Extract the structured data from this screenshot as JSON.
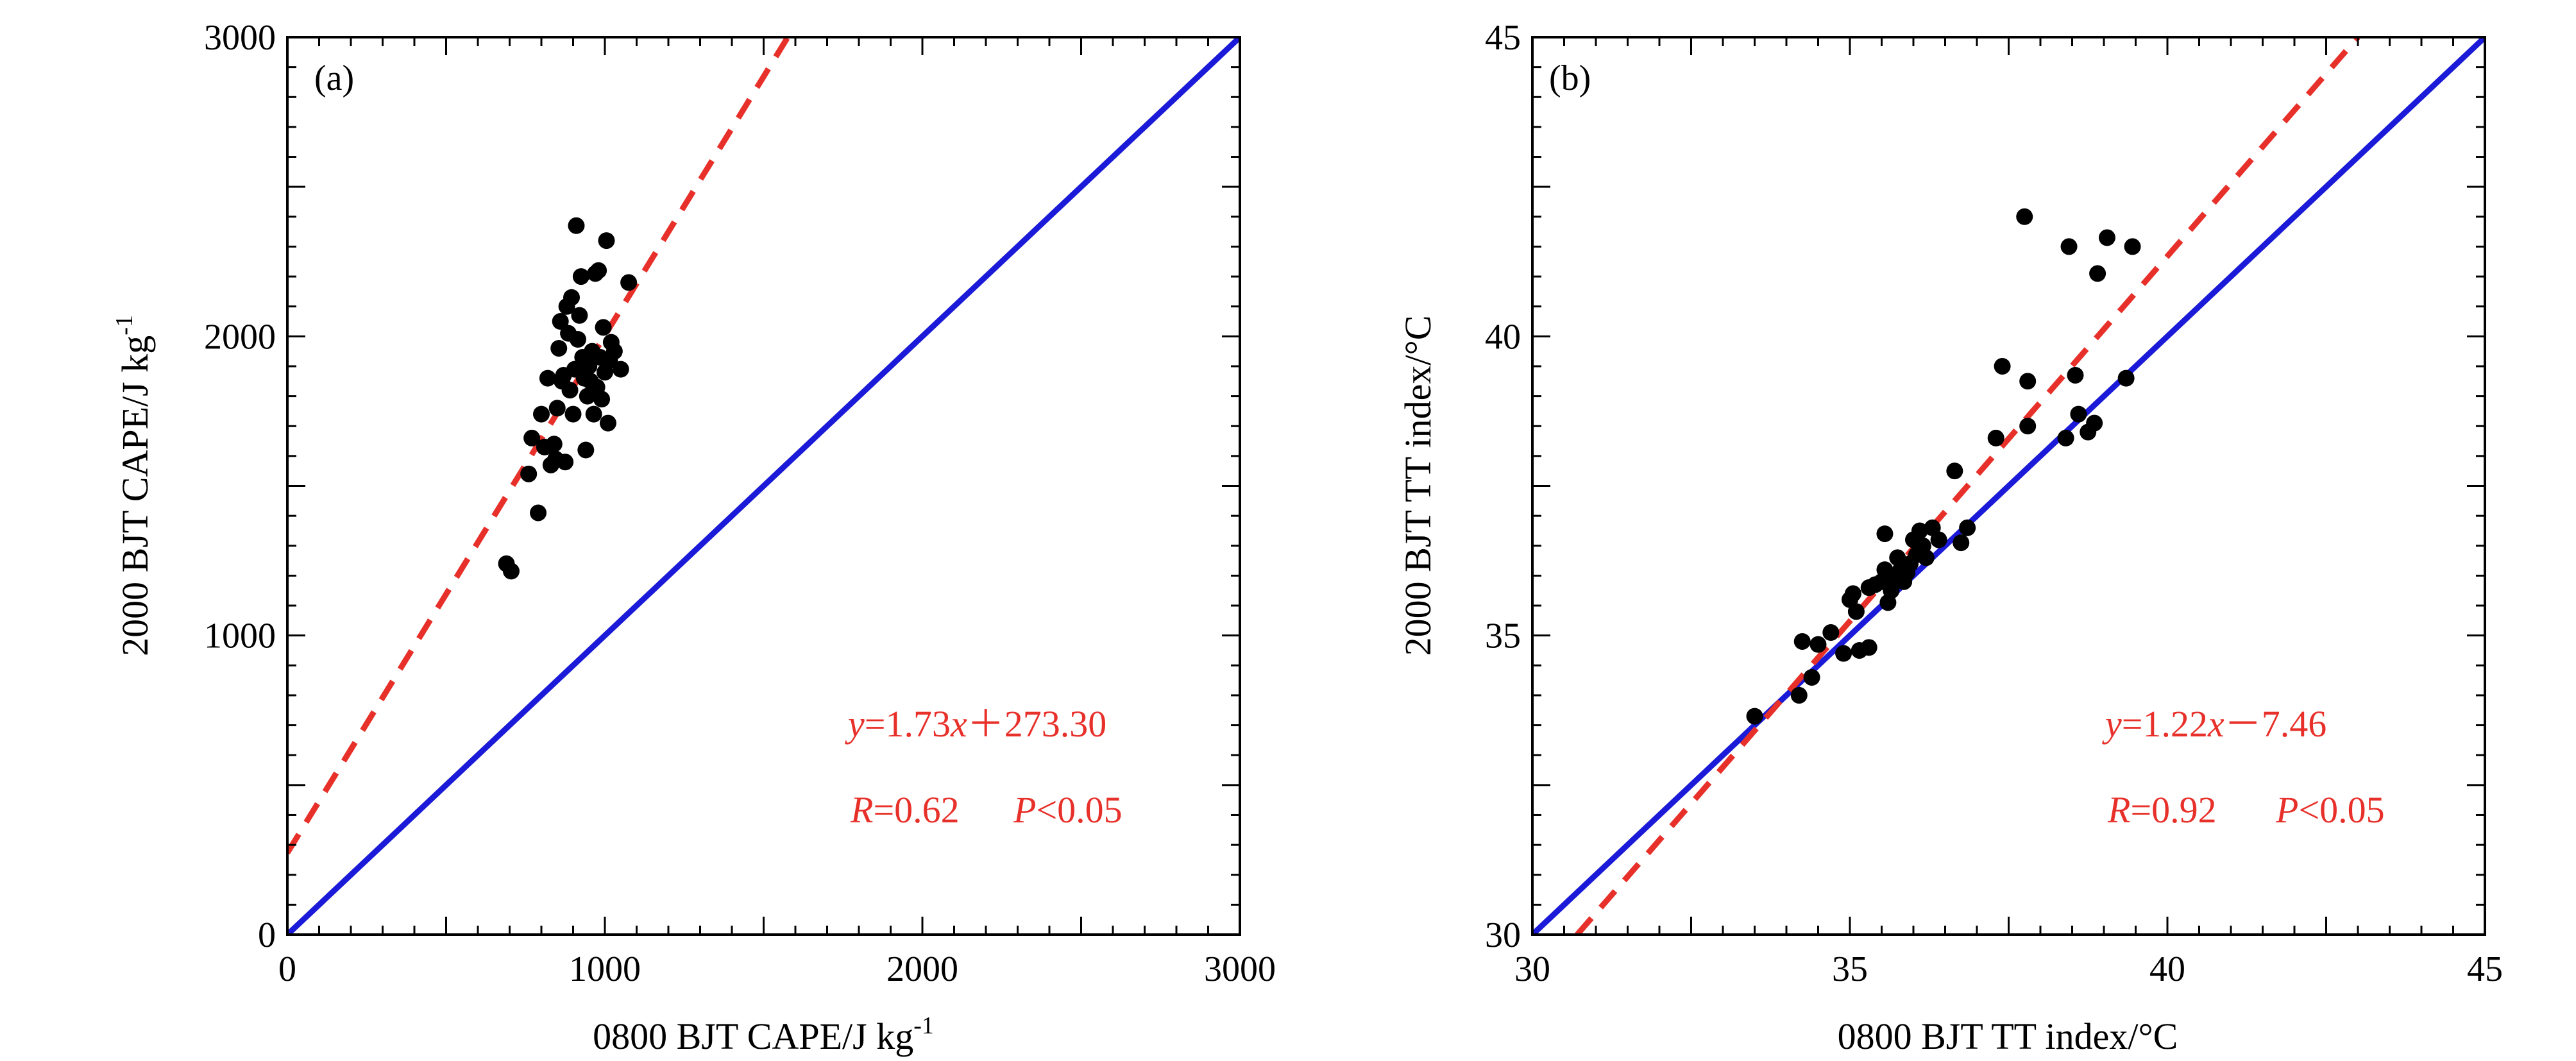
{
  "chart_data": [
    {
      "type": "scatter",
      "panel_label": "(a)",
      "xlabel": "0800 BJT CAPE/J kg",
      "ylabel": "2000 BJT CAPE/J kg",
      "unit_superscript": "-1",
      "xlim": [
        0,
        3000
      ],
      "ylim": [
        0,
        3000
      ],
      "xticks": [
        "0",
        "1000",
        "2000",
        "3000"
      ],
      "yticks": [
        "0",
        "1000",
        "2000",
        "3000"
      ],
      "grid": false,
      "points_color": "#000000",
      "fit_line": {
        "slope": 1.73,
        "intercept": 273.3,
        "color": "#e8302a",
        "style": "dashed"
      },
      "one_to_one_line": {
        "slope": 1,
        "intercept": 0,
        "color": "#1a1ad8",
        "style": "solid"
      },
      "equation": {
        "y": "y",
        "eq1": "=1.73",
        "x": "x",
        "eq2": "＋273.30"
      },
      "stats": {
        "r_name": "R",
        "r_value": "=0.62",
        "p_name": "P",
        "p_value": "<0.05"
      },
      "points": [
        [
          690,
          1240
        ],
        [
          705,
          1215
        ],
        [
          760,
          1540
        ],
        [
          770,
          1660
        ],
        [
          790,
          1410
        ],
        [
          800,
          1740
        ],
        [
          810,
          1630
        ],
        [
          820,
          1860
        ],
        [
          830,
          1570
        ],
        [
          840,
          1640
        ],
        [
          845,
          1590
        ],
        [
          850,
          1760
        ],
        [
          855,
          1960
        ],
        [
          860,
          2050
        ],
        [
          865,
          1850
        ],
        [
          870,
          1870
        ],
        [
          875,
          1580
        ],
        [
          880,
          2100
        ],
        [
          885,
          2010
        ],
        [
          890,
          1820
        ],
        [
          895,
          2130
        ],
        [
          900,
          1740
        ],
        [
          905,
          1890
        ],
        [
          910,
          2370
        ],
        [
          915,
          1990
        ],
        [
          920,
          2070
        ],
        [
          925,
          2200
        ],
        [
          930,
          1930
        ],
        [
          935,
          1860
        ],
        [
          940,
          1620
        ],
        [
          945,
          1800
        ],
        [
          950,
          1900
        ],
        [
          955,
          1850
        ],
        [
          960,
          1950
        ],
        [
          965,
          1740
        ],
        [
          970,
          2210
        ],
        [
          975,
          1830
        ],
        [
          980,
          2220
        ],
        [
          985,
          1930
        ],
        [
          990,
          1790
        ],
        [
          995,
          2030
        ],
        [
          1000,
          1880
        ],
        [
          1005,
          2320
        ],
        [
          1010,
          1710
        ],
        [
          1015,
          1920
        ],
        [
          1020,
          1980
        ],
        [
          1030,
          1950
        ],
        [
          1050,
          1890
        ],
        [
          1075,
          2180
        ]
      ]
    },
    {
      "type": "scatter",
      "panel_label": "(b)",
      "xlabel": "0800 BJT TT index/°C",
      "ylabel": "2000 BJT TT index/°C",
      "xlim": [
        30,
        45
      ],
      "ylim": [
        30,
        45
      ],
      "xticks": [
        "30",
        "35",
        "40",
        "45"
      ],
      "yticks": [
        "30",
        "35",
        "40",
        "45"
      ],
      "grid": false,
      "points_color": "#000000",
      "fit_line": {
        "slope": 1.22,
        "intercept": -7.46,
        "color": "#e8302a",
        "style": "dashed"
      },
      "one_to_one_line": {
        "slope": 1,
        "intercept": 0,
        "color": "#1a1ad8",
        "style": "solid"
      },
      "equation": {
        "y": "y",
        "eq1": "=1.22",
        "x": "x",
        "eq2": "－7.46"
      },
      "stats": {
        "r_name": "R",
        "r_value": "=0.92",
        "p_name": "P",
        "p_value": "<0.05"
      },
      "points": [
        [
          33.5,
          33.65
        ],
        [
          34.2,
          34.0
        ],
        [
          34.25,
          34.9
        ],
        [
          34.4,
          34.3
        ],
        [
          34.5,
          34.85
        ],
        [
          34.7,
          35.05
        ],
        [
          34.9,
          34.7
        ],
        [
          35.0,
          35.6
        ],
        [
          35.05,
          35.7
        ],
        [
          35.1,
          35.4
        ],
        [
          35.15,
          34.75
        ],
        [
          35.3,
          34.8
        ],
        [
          35.3,
          35.8
        ],
        [
          35.4,
          35.85
        ],
        [
          35.5,
          35.9
        ],
        [
          35.55,
          36.1
        ],
        [
          35.55,
          36.7
        ],
        [
          35.6,
          35.55
        ],
        [
          35.65,
          35.75
        ],
        [
          35.7,
          36.0
        ],
        [
          35.75,
          36.3
        ],
        [
          35.8,
          36.1
        ],
        [
          35.85,
          35.9
        ],
        [
          35.9,
          36.05
        ],
        [
          35.95,
          36.2
        ],
        [
          36.0,
          36.6
        ],
        [
          36.05,
          36.35
        ],
        [
          36.1,
          36.75
        ],
        [
          36.15,
          36.5
        ],
        [
          36.2,
          36.3
        ],
        [
          36.3,
          36.8
        ],
        [
          36.4,
          36.6
        ],
        [
          36.65,
          37.75
        ],
        [
          36.75,
          36.55
        ],
        [
          36.85,
          36.8
        ],
        [
          37.3,
          38.3
        ],
        [
          37.4,
          39.5
        ],
        [
          37.75,
          42.0
        ],
        [
          37.8,
          38.5
        ],
        [
          37.8,
          39.25
        ],
        [
          38.4,
          38.3
        ],
        [
          38.45,
          41.5
        ],
        [
          38.55,
          39.35
        ],
        [
          38.6,
          38.7
        ],
        [
          38.75,
          38.4
        ],
        [
          38.85,
          38.55
        ],
        [
          38.9,
          41.05
        ],
        [
          39.05,
          41.65
        ],
        [
          39.35,
          39.3
        ],
        [
          39.45,
          41.5
        ]
      ]
    }
  ]
}
